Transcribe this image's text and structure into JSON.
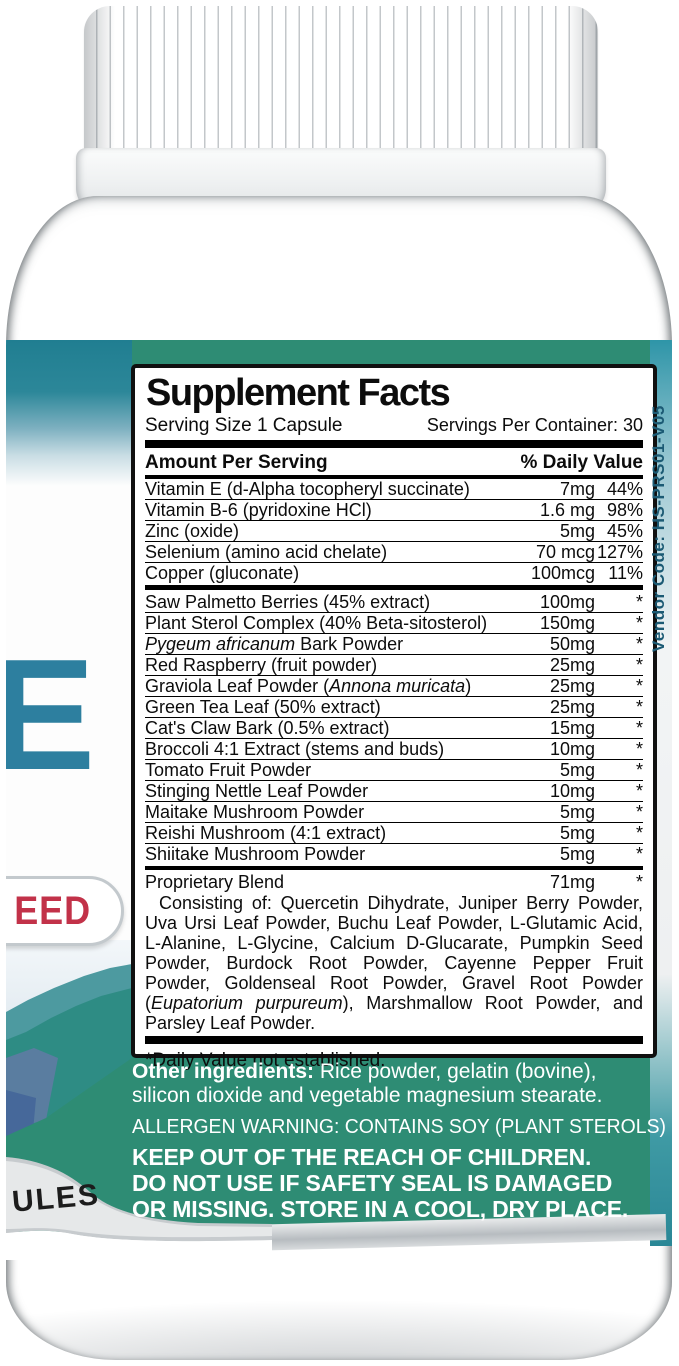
{
  "product_photo": {
    "supplement_facts": {
      "title": "Supplement Facts",
      "serving_size": "Serving Size 1 Capsule",
      "servings_per_container": "Servings Per Container: 30",
      "amount_header": "Amount Per Serving",
      "dv_header": "% Daily Value",
      "nutrients": [
        {
          "pre": "Vitamin E (d-Alpha tocopheryl succinate)",
          "amount": "7mg",
          "dv": "44%"
        },
        {
          "pre": "Vitamin B-6 (pyridoxine HCl)",
          "amount": "1.6 mg",
          "dv": "98%"
        },
        {
          "pre": "Zinc (oxide)",
          "amount": "5mg",
          "dv": "45%"
        },
        {
          "pre": "Selenium (amino acid chelate)",
          "amount": "70 mcg",
          "dv": "127%"
        },
        {
          "pre": "Copper (gluconate)",
          "amount": "100mcg",
          "dv": "11%"
        }
      ],
      "botanicals": [
        {
          "pre": "Saw Palmetto Berries (45% extract)",
          "amount": "100mg",
          "dv": "*"
        },
        {
          "pre": "Plant Sterol Complex (40% Beta-sitosterol)",
          "amount": "150mg",
          "dv": "*"
        },
        {
          "italic": "Pygeum africanum",
          "post": " Bark Powder",
          "amount": "50mg",
          "dv": "*"
        },
        {
          "pre": "Red Raspberry (fruit powder)",
          "amount": "25mg",
          "dv": "*"
        },
        {
          "pre": "Graviola Leaf Powder (",
          "italic": "Annona muricata",
          "post": ")",
          "amount": "25mg",
          "dv": "*"
        },
        {
          "pre": "Green Tea Leaf (50% extract)",
          "amount": "25mg",
          "dv": "*"
        },
        {
          "pre": "Cat's Claw Bark (0.5% extract)",
          "amount": "15mg",
          "dv": "*"
        },
        {
          "pre": "Broccoli 4:1 Extract (stems and buds)",
          "amount": "10mg",
          "dv": "*"
        },
        {
          "pre": "Tomato Fruit Powder",
          "amount": "5mg",
          "dv": "*"
        },
        {
          "pre": "Stinging Nettle Leaf Powder",
          "amount": "10mg",
          "dv": "*"
        },
        {
          "pre": "Maitake Mushroom Powder",
          "amount": "5mg",
          "dv": "*"
        },
        {
          "pre": "Reishi Mushroom (4:1 extract)",
          "amount": "5mg",
          "dv": "*"
        },
        {
          "pre": "Shiitake Mushroom Powder",
          "amount": "5mg",
          "dv": "*"
        }
      ],
      "blend": {
        "name": "Proprietary Blend",
        "amount": "71mg",
        "dv": "*",
        "desc_pre": "Consisting of: Quercetin Dihydrate, Juniper Berry Powder, Uva Ursi Leaf Powder, Buchu Leaf Powder, L-Glutamic Acid, L-Alanine, L-Glycine, Calcium D-Glucarate, Pumpkin Seed Powder, Burdock Root Powder, Cayenne Pepper Fruit Powder, Goldenseal Root Powder, Gravel Root Powder (",
        "desc_italic": "Eupatorium purpureum",
        "desc_post": "), Marshmallow Root Powder, and Parsley Leaf Powder."
      },
      "footnote": "*Daily Value not established."
    },
    "other_ingredients": {
      "bold": "Other ingredients:",
      "text": " Rice powder, gelatin (bovine), silicon dioxide and vegetable magnesium stearate."
    },
    "allergen_warning": "ALLERGEN WARNING: CONTAINS SOY (PLANT STEROLS) .",
    "caution": {
      "lines": [
        "KEEP OUT OF THE REACH OF CHILDREN.",
        "DO NOT USE IF SAFETY SEAL IS DAMAGED",
        "OR MISSING. STORE IN A COOL, DRY PLACE."
      ]
    },
    "vendor_code": "Vendor Code: HS-PRS01-V05",
    "front_label_partials": {
      "big_letter": "E",
      "pill_text": "EED",
      "capsules_text": "ULES"
    },
    "colors": {
      "label_green": "#2e8c74",
      "band_teal": "#207e91",
      "letter_teal": "#2d7f9f",
      "pill_red": "#c23249",
      "vendor_text": "#1b5a74",
      "silver": "#b7bcc0",
      "mountain_slate": "#5a7da0",
      "mountain_teal": "#2e8c84"
    }
  }
}
